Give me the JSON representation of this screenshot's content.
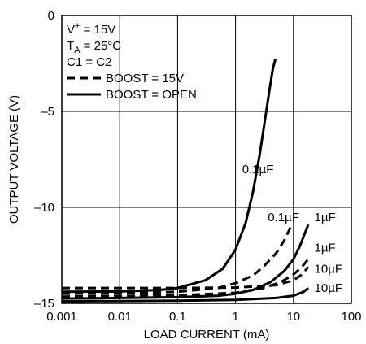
{
  "chart_data": {
    "type": "line",
    "xscale": "log",
    "xlabel": "LOAD CURRENT (mA)",
    "ylabel": "OUTPUT VOLTAGE (V)",
    "xlim": [
      0.001,
      100
    ],
    "ylim": [
      -15,
      0
    ],
    "grid": true,
    "xticks": [
      {
        "value": 0.001,
        "label": "0.001"
      },
      {
        "value": 0.01,
        "label": "0.01"
      },
      {
        "value": 0.1,
        "label": "0.1"
      },
      {
        "value": 1,
        "label": "1"
      },
      {
        "value": 10,
        "label": "10"
      },
      {
        "value": 100,
        "label": "100"
      }
    ],
    "yticks": [
      {
        "value": 0,
        "label": "0"
      },
      {
        "value": -5,
        "label": "–5"
      },
      {
        "value": -10,
        "label": "–10"
      },
      {
        "value": -15,
        "label": "–15"
      }
    ],
    "conditions": [
      {
        "base": "V",
        "sup": "+",
        "sub": "",
        "rest": " = 15V"
      },
      {
        "base": "T",
        "sup": "",
        "sub": "A",
        "rest": " = 25°C"
      },
      {
        "base": "C1 = C2",
        "sup": "",
        "sub": "",
        "rest": ""
      }
    ],
    "legend": [
      {
        "label": "BOOST = 15V",
        "style": "dashed"
      },
      {
        "label": "BOOST = OPEN",
        "style": "solid"
      }
    ],
    "series": [
      {
        "style": "solid",
        "label": "0.1µF",
        "points": [
          [
            0.001,
            -14.4
          ],
          [
            0.01,
            -14.38
          ],
          [
            0.05,
            -14.3
          ],
          [
            0.1,
            -14.2
          ],
          [
            0.3,
            -13.8
          ],
          [
            0.6,
            -13.2
          ],
          [
            1,
            -12.2
          ],
          [
            1.5,
            -10.8
          ],
          [
            2,
            -9.2
          ],
          [
            2.6,
            -7.3
          ],
          [
            3.2,
            -5.5
          ],
          [
            3.8,
            -4.0
          ],
          [
            4.4,
            -2.8
          ],
          [
            4.9,
            -2.25
          ]
        ]
      },
      {
        "style": "dashed",
        "label": "0.1µF",
        "points": [
          [
            0.001,
            -14.5
          ],
          [
            0.01,
            -14.48
          ],
          [
            0.1,
            -14.4
          ],
          [
            0.5,
            -14.2
          ],
          [
            1,
            -13.95
          ],
          [
            2,
            -13.55
          ],
          [
            3,
            -13.1
          ],
          [
            5,
            -12.4
          ],
          [
            7,
            -11.7
          ],
          [
            9,
            -11.0
          ]
        ]
      },
      {
        "style": "solid",
        "label": "1µF",
        "points": [
          [
            0.001,
            -14.75
          ],
          [
            0.01,
            -14.72
          ],
          [
            0.1,
            -14.68
          ],
          [
            0.5,
            -14.6
          ],
          [
            1,
            -14.5
          ],
          [
            2,
            -14.3
          ],
          [
            4,
            -13.9
          ],
          [
            7,
            -13.3
          ],
          [
            10,
            -12.7
          ],
          [
            13,
            -12.0
          ],
          [
            16,
            -11.3
          ],
          [
            18,
            -10.9
          ]
        ]
      },
      {
        "style": "dashed",
        "label": "1µF",
        "points": [
          [
            0.001,
            -14.65
          ],
          [
            0.01,
            -14.62
          ],
          [
            0.1,
            -14.58
          ],
          [
            1,
            -14.45
          ],
          [
            3,
            -14.2
          ],
          [
            6,
            -13.9
          ],
          [
            10,
            -13.5
          ],
          [
            14,
            -13.1
          ],
          [
            18,
            -12.7
          ]
        ]
      },
      {
        "style": "dashed",
        "label": "10µF",
        "points": [
          [
            0.001,
            -14.2
          ],
          [
            0.01,
            -14.2
          ],
          [
            0.1,
            -14.2
          ],
          [
            1,
            -14.18
          ],
          [
            5,
            -14.05
          ],
          [
            10,
            -13.8
          ],
          [
            14,
            -13.5
          ],
          [
            18,
            -13.1
          ]
        ]
      },
      {
        "style": "solid",
        "label": "10µF",
        "points": [
          [
            0.001,
            -14.9
          ],
          [
            0.01,
            -14.88
          ],
          [
            0.1,
            -14.86
          ],
          [
            1,
            -14.82
          ],
          [
            5,
            -14.72
          ],
          [
            10,
            -14.6
          ],
          [
            15,
            -14.4
          ],
          [
            18,
            -14.2
          ]
        ]
      }
    ],
    "annotations": [
      {
        "text": "0.1µF",
        "x": 1.3,
        "y": -8.0
      },
      {
        "text": "0.1µF",
        "x": 3.6,
        "y": -10.5
      },
      {
        "text": "1µF",
        "x": 23,
        "y": -10.5
      },
      {
        "text": "1µF",
        "x": 23,
        "y": -12.1
      },
      {
        "text": "10µF",
        "x": 23,
        "y": -13.2
      },
      {
        "text": "10µF",
        "x": 23,
        "y": -14.2
      }
    ]
  }
}
